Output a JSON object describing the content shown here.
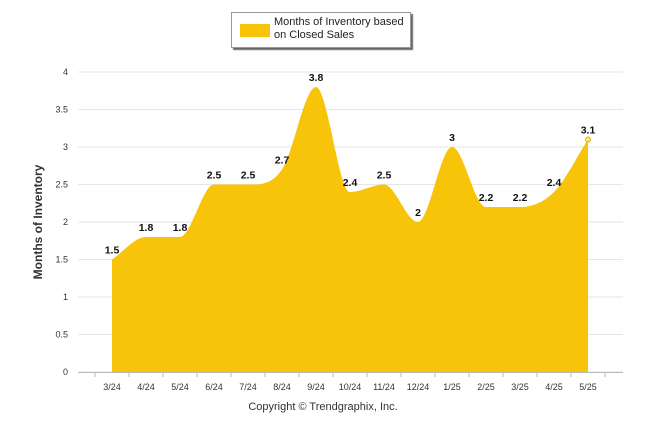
{
  "chart_data": {
    "type": "area",
    "categories": [
      "3/24",
      "4/24",
      "5/24",
      "6/24",
      "7/24",
      "8/24",
      "9/24",
      "10/24",
      "11/24",
      "12/24",
      "1/25",
      "2/25",
      "3/25",
      "4/25",
      "5/25"
    ],
    "series": [
      {
        "name": "Months of Inventory based on Closed Sales",
        "values": [
          1.5,
          1.8,
          1.8,
          2.5,
          2.5,
          2.7,
          3.8,
          2.4,
          2.5,
          2.0,
          3.0,
          2.2,
          2.2,
          2.4,
          3.1
        ],
        "labels": [
          "1.5",
          "1.8",
          "1.8",
          "2.5",
          "2.5",
          "2.7",
          "3.8",
          "2.4",
          "2.5",
          "2",
          "3",
          "2.2",
          "2.2",
          "2.4",
          "3.1"
        ],
        "color": "#f7c40a"
      }
    ],
    "ylabel": "Months of Inventory",
    "ylim": [
      0,
      4
    ],
    "yticks": [
      0,
      0.5,
      1,
      1.5,
      2,
      2.5,
      3,
      3.5,
      4
    ],
    "ytick_labels": [
      "0",
      "0.5",
      "1",
      "1.5",
      "2",
      "2.5",
      "3",
      "3.5",
      "4"
    ],
    "grid": true,
    "legend_position": "top-center"
  },
  "legend": {
    "label": "Months of Inventory based on Closed Sales"
  },
  "footer": {
    "copyright": "Copyright © Trendgraphix, Inc."
  }
}
